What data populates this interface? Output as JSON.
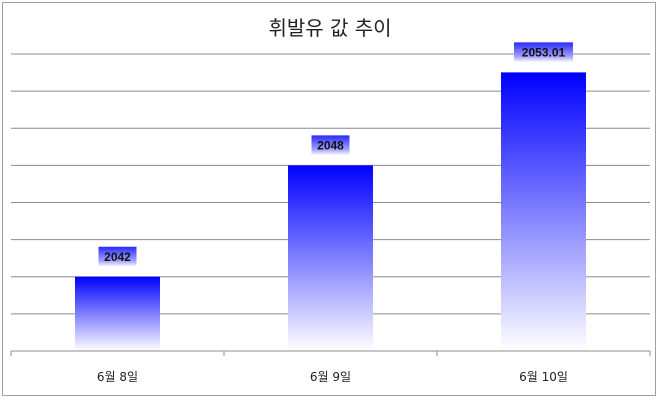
{
  "chart_data": {
    "type": "bar",
    "title": "휘발유 값 추이",
    "categories": [
      "6월 8일",
      "6월 9일",
      "6월 10일"
    ],
    "values": [
      2042,
      2048,
      2053.01
    ],
    "value_labels": [
      "2042",
      "2048",
      "2053.01"
    ],
    "xlabel": "",
    "ylabel": "",
    "ylim": [
      2038,
      2054
    ],
    "ytick_step": 2,
    "grid": true,
    "legend": "none",
    "colors": {
      "bar_top": "#0000ff",
      "bar_bottom": "#ffffff",
      "grid": "#8c8c8c"
    }
  }
}
